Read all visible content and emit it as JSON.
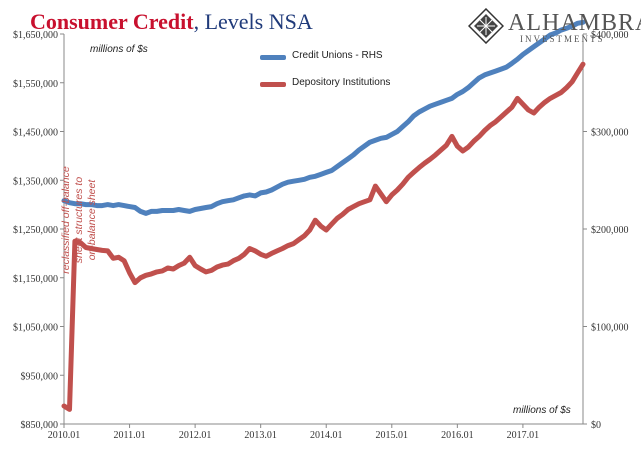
{
  "header": {
    "title_main": "Consumer Credit",
    "title_rest": ", Levels NSA"
  },
  "logo": {
    "name": "ALHAMBRA",
    "sub": "INVESTMENTS",
    "icon": "diamond-lattice-logo-icon"
  },
  "unit_left": "millions of $s",
  "unit_right": "millions of $s",
  "annotation": [
    "reclassified off-balance",
    "sheet structures to",
    "on-balance sheet"
  ],
  "colors": {
    "credit_unions": "#4f81bd",
    "depository": "#c0504d",
    "title_red": "#c8102e",
    "title_blue": "#1f3a7a"
  },
  "chart_data": {
    "type": "line",
    "x_ticks": [
      "2010.01",
      "2011.01",
      "2012.01",
      "2013.01",
      "2014.01",
      "2015.01",
      "2016.01",
      "2017.01"
    ],
    "left_axis": {
      "ticks": [
        "$850,000",
        "$950,000",
        "$1,050,000",
        "$1,150,000",
        "$1,250,000",
        "$1,350,000",
        "$1,450,000",
        "$1,550,000",
        "$1,650,000"
      ],
      "range": [
        850000,
        1650000
      ]
    },
    "right_axis": {
      "ticks": [
        "$0",
        "$100,000",
        "$200,000",
        "$300,000",
        "$400,000"
      ],
      "range": [
        0,
        400000
      ]
    },
    "legend": [
      {
        "name": "Credit Unions - RHS"
      },
      {
        "name": "Depository Institutions"
      }
    ],
    "series": [
      {
        "name": "Credit Unions - RHS",
        "axis": "right",
        "values": [
          229000,
          227000,
          226000,
          226000,
          225000,
          225000,
          224000,
          224000,
          225000,
          224000,
          225000,
          224000,
          223000,
          222000,
          218000,
          216000,
          218000,
          218000,
          219000,
          219000,
          219000,
          220000,
          219000,
          218000,
          220000,
          221000,
          222000,
          223000,
          226000,
          228000,
          229000,
          230000,
          232000,
          234000,
          235000,
          234000,
          237000,
          238000,
          240000,
          243000,
          246000,
          248000,
          249000,
          250000,
          251000,
          253000,
          254000,
          256000,
          258000,
          260000,
          264000,
          268000,
          272000,
          276000,
          281000,
          285000,
          289000,
          291000,
          293000,
          294000,
          297000,
          300000,
          305000,
          310000,
          316000,
          320000,
          323000,
          326000,
          328000,
          330000,
          332000,
          334000,
          338000,
          341000,
          345000,
          350000,
          355000,
          358000,
          360000,
          362000,
          364000,
          366000,
          370000,
          374000,
          379000,
          383000,
          387000,
          391000,
          395000,
          399000,
          401000,
          404000,
          406000,
          408000,
          411000,
          412000
        ]
      },
      {
        "name": "Depository Institutions",
        "axis": "left",
        "values": [
          887000,
          880000,
          1225000,
          1222000,
          1212000,
          1210000,
          1208000,
          1206000,
          1205000,
          1190000,
          1192000,
          1185000,
          1160000,
          1140000,
          1150000,
          1155000,
          1158000,
          1162000,
          1164000,
          1170000,
          1168000,
          1175000,
          1180000,
          1192000,
          1175000,
          1168000,
          1162000,
          1165000,
          1172000,
          1176000,
          1178000,
          1185000,
          1190000,
          1198000,
          1210000,
          1205000,
          1198000,
          1194000,
          1200000,
          1205000,
          1210000,
          1216000,
          1220000,
          1228000,
          1236000,
          1248000,
          1268000,
          1256000,
          1248000,
          1260000,
          1272000,
          1280000,
          1290000,
          1296000,
          1302000,
          1306000,
          1310000,
          1338000,
          1322000,
          1306000,
          1320000,
          1330000,
          1342000,
          1356000,
          1366000,
          1376000,
          1385000,
          1393000,
          1402000,
          1412000,
          1422000,
          1440000,
          1420000,
          1410000,
          1418000,
          1430000,
          1440000,
          1452000,
          1462000,
          1470000,
          1480000,
          1490000,
          1500000,
          1518000,
          1506000,
          1494000,
          1488000,
          1500000,
          1510000,
          1518000,
          1524000,
          1530000,
          1540000,
          1552000,
          1570000,
          1588000
        ]
      }
    ],
    "grid": false,
    "legend_position": "top-center"
  }
}
